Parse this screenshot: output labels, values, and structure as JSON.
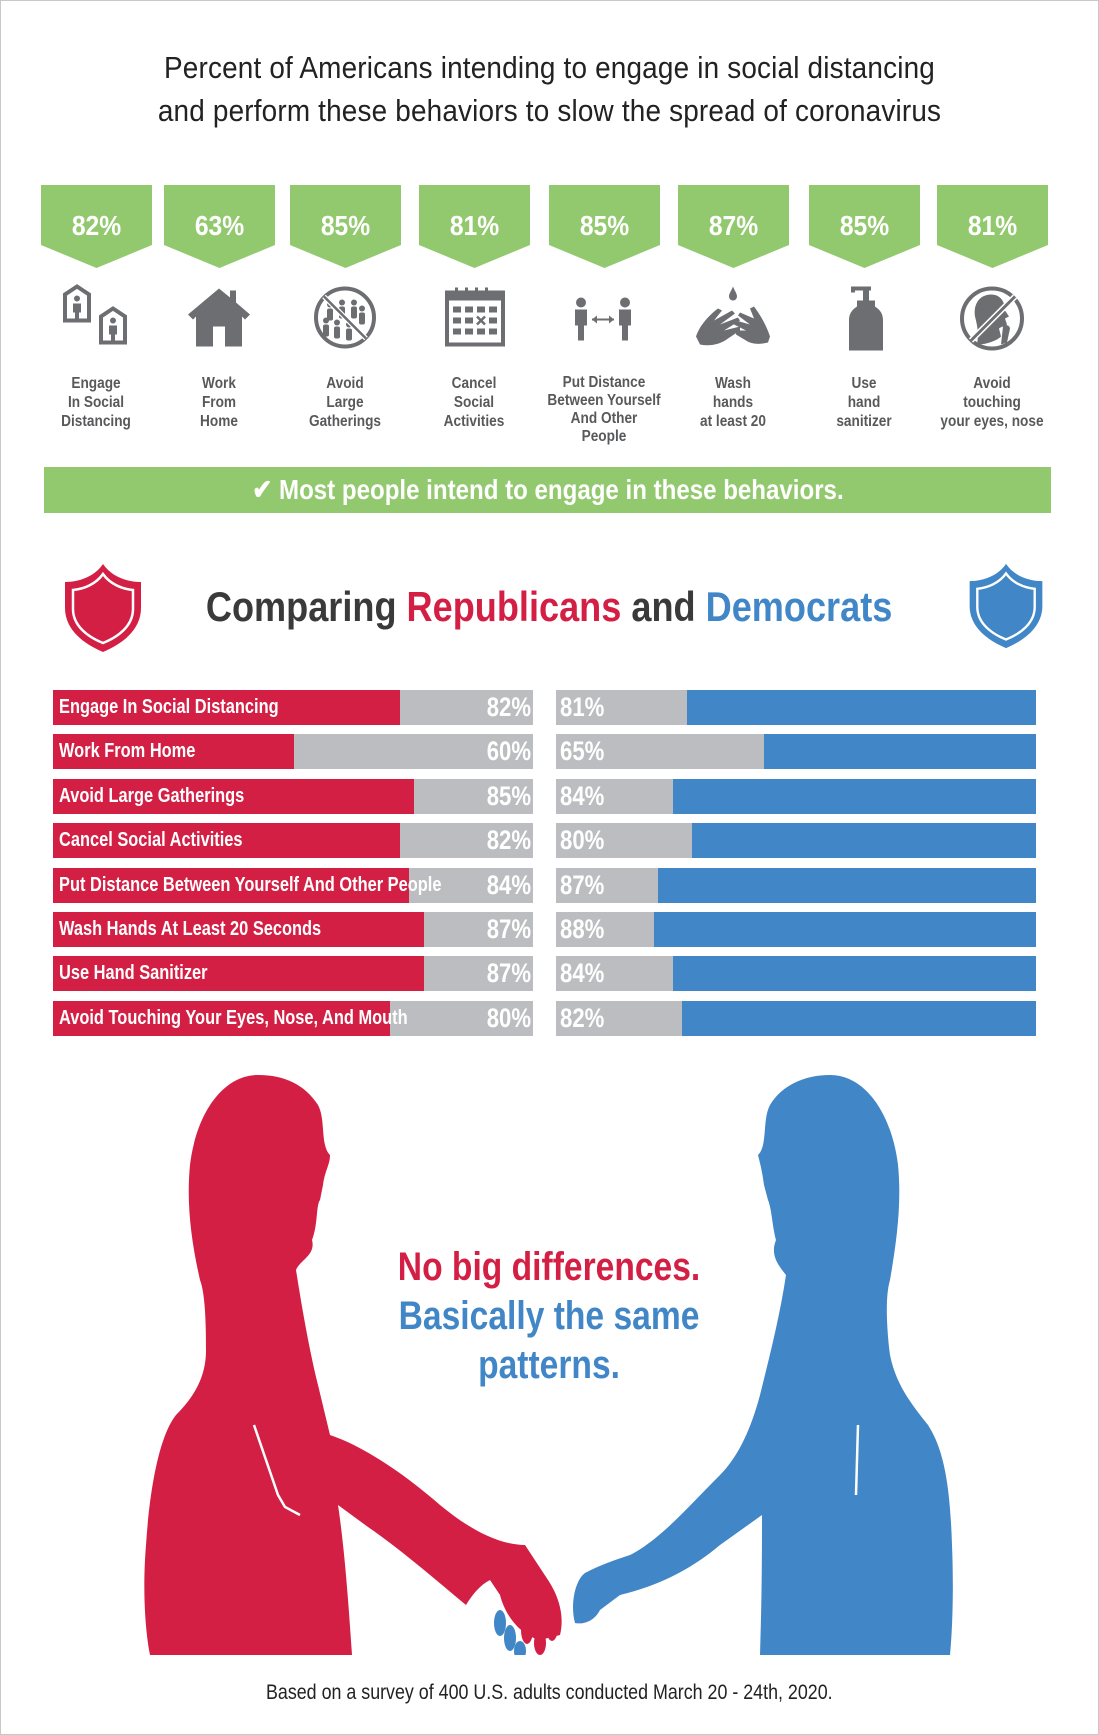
{
  "header": {
    "title_line1": "Percent of Americans intending to engage in social distancing",
    "title_line2": "and perform these behaviors to slow the spread of coronavirus"
  },
  "behaviors": [
    {
      "pct": "82%",
      "icon": "houses-person-icon",
      "label": [
        "Engage",
        "In Social",
        "Distancing"
      ]
    },
    {
      "pct": "63%",
      "icon": "house-icon",
      "label": [
        "Work",
        "From",
        "Home"
      ]
    },
    {
      "pct": "85%",
      "icon": "no-crowd-icon",
      "label": [
        "Avoid",
        "Large",
        "Gatherings"
      ]
    },
    {
      "pct": "81%",
      "icon": "calendar-cancel-icon",
      "label": [
        "Cancel",
        "Social",
        "Activities"
      ]
    },
    {
      "pct": "85%",
      "icon": "people-distance-icon",
      "label": [
        "Put Distance",
        "Between Yourself",
        "And Other",
        "People"
      ]
    },
    {
      "pct": "87%",
      "icon": "hand-wash-icon",
      "label": [
        "Wash",
        "hands",
        "at least 20"
      ]
    },
    {
      "pct": "85%",
      "icon": "sanitizer-bottle-icon",
      "label": [
        "Use",
        "hand",
        "sanitizer"
      ]
    },
    {
      "pct": "81%",
      "icon": "no-face-touch-icon",
      "label": [
        "Avoid",
        "touching",
        "your eyes, nose"
      ]
    }
  ],
  "banner": {
    "icon": "checkmark-icon",
    "check": "✔",
    "text": "Most people intend to engage in these behaviors."
  },
  "comparison": {
    "title_prefix": "Comparing ",
    "republicans": "Republicans",
    "and": " and ",
    "democrats": "Democrats",
    "colors": {
      "republican": "#d41f45",
      "democrat": "#4186c6",
      "remainder": "#bcbdc0",
      "green": "#93c96e"
    }
  },
  "chart_data": {
    "type": "bar",
    "title": "Comparing Republicans and Democrats",
    "categories": [
      "Engage In Social Distancing",
      "Work From Home",
      "Avoid Large Gatherings",
      "Cancel Social Activities",
      "Put Distance Between Yourself And Other People",
      "Wash Hands At Least 20 Seconds",
      "Use Hand Sanitizer",
      "Avoid Touching Your Eyes, Nose, And Mouth"
    ],
    "series": [
      {
        "name": "Republicans",
        "values": [
          82,
          60,
          85,
          82,
          84,
          87,
          87,
          80
        ]
      },
      {
        "name": "Democrats",
        "values": [
          81,
          65,
          84,
          80,
          87,
          88,
          84,
          82
        ]
      }
    ],
    "overall": {
      "categories": [
        "Engage In Social Distancing",
        "Work From Home",
        "Avoid Large Gatherings",
        "Cancel Social Activities",
        "Put Distance Between Yourself And Other People",
        "Wash hands at least 20",
        "Use hand sanitizer",
        "Avoid touching your eyes, nose"
      ],
      "values": [
        82,
        63,
        85,
        81,
        85,
        87,
        85,
        81
      ]
    },
    "xlabel": "",
    "ylabel": "",
    "ylim": [
      0,
      100
    ]
  },
  "message": {
    "line1": "No big differences.",
    "line2": "Basically the same",
    "line3": "patterns."
  },
  "footer": {
    "text": "Based on a survey of 400 U.S. adults conducted March 20 - 24th, 2020."
  }
}
